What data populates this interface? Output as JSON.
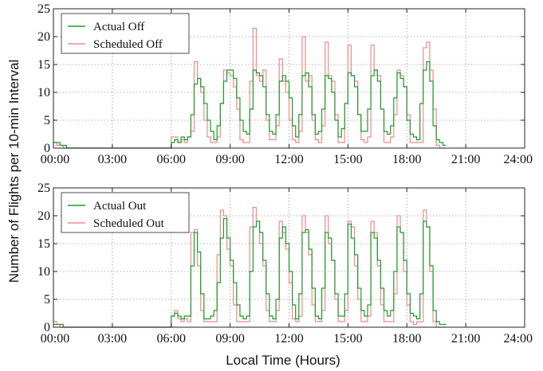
{
  "ylabel": "Number of Flights per 10-min Interval",
  "xlabel": "Local Time (Hours)",
  "colors": {
    "actual": "#1f9a2e",
    "scheduled": "#f08b8b"
  },
  "chart_data": [
    {
      "type": "line",
      "xlabel": "",
      "ylabel": "",
      "ylim": [
        0,
        25
      ],
      "xlim_hours": [
        0,
        24
      ],
      "yticks": [
        0,
        5,
        10,
        15,
        20,
        25
      ],
      "xticks": [
        "00:00",
        "03:00",
        "06:00",
        "09:00",
        "12:00",
        "15:00",
        "18:00",
        "21:00",
        "24:00"
      ],
      "grid": true,
      "legend_position": "top-left",
      "interval_minutes": 10,
      "series": [
        {
          "name": "Actual Off",
          "color": "#1f9a2e",
          "values": [
            1,
            1,
            0.5,
            0.5,
            0,
            0,
            0,
            0,
            0,
            0,
            0,
            0,
            0,
            0,
            0,
            0,
            0,
            0,
            0,
            0,
            0,
            0,
            0,
            0,
            0,
            0,
            0,
            0,
            0,
            0,
            0,
            0,
            0,
            0,
            0,
            0,
            1,
            1.5,
            1,
            2,
            1.5,
            2,
            6,
            11.5,
            12.5,
            11,
            8,
            5,
            3,
            1.5,
            4,
            8,
            12,
            14,
            14,
            12.5,
            9,
            5,
            3,
            2.5,
            7,
            14,
            13.5,
            13,
            11,
            6,
            3,
            2.5,
            6,
            12,
            13,
            12,
            9,
            4,
            2,
            6,
            13,
            13.5,
            11,
            6,
            2.5,
            3,
            7,
            13,
            12.5,
            10,
            5,
            2,
            3.5,
            8,
            13.5,
            13,
            11,
            6,
            3,
            3,
            7,
            13,
            14,
            12,
            7,
            3,
            2.5,
            4,
            9,
            13.5,
            12.5,
            11,
            5,
            2.5,
            2,
            1.5,
            8,
            14,
            15.5,
            12,
            4,
            1.5,
            1,
            0.5
          ]
        },
        {
          "name": "Scheduled Off",
          "color": "#f08b8b",
          "values": [
            1,
            0.5,
            0.5,
            0,
            0,
            0,
            0,
            0,
            0,
            0,
            0,
            0,
            0,
            0,
            0,
            0,
            0,
            0,
            0,
            0,
            0,
            0,
            0,
            0,
            0,
            0,
            0,
            0,
            0,
            0,
            0,
            0,
            0,
            0,
            0,
            0,
            2,
            2,
            1,
            1.5,
            1,
            2,
            3,
            15.5,
            12.5,
            10,
            5,
            2,
            1,
            1,
            2,
            8,
            14,
            13.5,
            13,
            11,
            7,
            1.5,
            1,
            1,
            12,
            21.5,
            13,
            12,
            14,
            5,
            1.5,
            1.5,
            4,
            16,
            12,
            10,
            5,
            1.5,
            1,
            3,
            20,
            12,
            13,
            5,
            1.5,
            1,
            4,
            19,
            13,
            12,
            6,
            1,
            1,
            8,
            18.5,
            13,
            12,
            6,
            1.5,
            1,
            2,
            18.5,
            14,
            13,
            7,
            1,
            1,
            2,
            6,
            14,
            13,
            11,
            6,
            1,
            1,
            1,
            1,
            18,
            19,
            14,
            7,
            0.5,
            0,
            0
          ]
        }
      ]
    },
    {
      "type": "line",
      "xlabel": "",
      "ylabel": "",
      "ylim": [
        0,
        25
      ],
      "xlim_hours": [
        0,
        24
      ],
      "yticks": [
        0,
        5,
        10,
        15,
        20,
        25
      ],
      "xticks": [
        "00:00",
        "03:00",
        "06:00",
        "09:00",
        "12:00",
        "15:00",
        "18:00",
        "21:00",
        "24:00"
      ],
      "grid": true,
      "legend_position": "top-left",
      "interval_minutes": 10,
      "series": [
        {
          "name": "Actual Out",
          "color": "#1f9a2e",
          "values": [
            0.5,
            0.5,
            0.5,
            0,
            0,
            0,
            0,
            0,
            0,
            0,
            0,
            0,
            0,
            0,
            0,
            0,
            0,
            0,
            0,
            0,
            0,
            0,
            0,
            0,
            0,
            0,
            0,
            0,
            0,
            0,
            0,
            0,
            0,
            0,
            0,
            0,
            2,
            2.5,
            2,
            1.5,
            2,
            2,
            11,
            17,
            13.5,
            6,
            1.5,
            1.5,
            2,
            3,
            8,
            16,
            19.5,
            16,
            12,
            8,
            4,
            2,
            1.5,
            2,
            10,
            18,
            19,
            17,
            12,
            6,
            2,
            1.5,
            5,
            16,
            18,
            15,
            10,
            4,
            1.5,
            6,
            17,
            17.5,
            14,
            7,
            2,
            1.5,
            7,
            17,
            16,
            12,
            6,
            2,
            2,
            6,
            18.5,
            16,
            13,
            7,
            3,
            2,
            4,
            17,
            16,
            12,
            7,
            3,
            2,
            3,
            10,
            18,
            17,
            12,
            6,
            2.5,
            2,
            1.5,
            6,
            19,
            18,
            11,
            3,
            1,
            0.5,
            0.5
          ]
        },
        {
          "name": "Scheduled Out",
          "color": "#f08b8b",
          "values": [
            1,
            0.5,
            0,
            0,
            0,
            0,
            0,
            0,
            0,
            0,
            0,
            0,
            0,
            0,
            0,
            0,
            0,
            0,
            0,
            0,
            0,
            0,
            0,
            0,
            0,
            0,
            0,
            0,
            0,
            0,
            0,
            0,
            0,
            0,
            0,
            0,
            2,
            3,
            1.5,
            1,
            1.5,
            1,
            17,
            17.5,
            11,
            3,
            1,
            1,
            1,
            1,
            13,
            21,
            20,
            14,
            11,
            4,
            1,
            1,
            1,
            1,
            18,
            21.5,
            19,
            15,
            11,
            3,
            1,
            1,
            3,
            19,
            17,
            14,
            8,
            1.5,
            1,
            2,
            20,
            17,
            13,
            4,
            1,
            1,
            3,
            20,
            15,
            12,
            5,
            1,
            1,
            3,
            19,
            18,
            11,
            5,
            1,
            1,
            2,
            19,
            17,
            11,
            4,
            1,
            1,
            1,
            6,
            20,
            17,
            10,
            4,
            1,
            0.5,
            1,
            1,
            21,
            18,
            10,
            1,
            0,
            0,
            0
          ]
        }
      ]
    }
  ]
}
